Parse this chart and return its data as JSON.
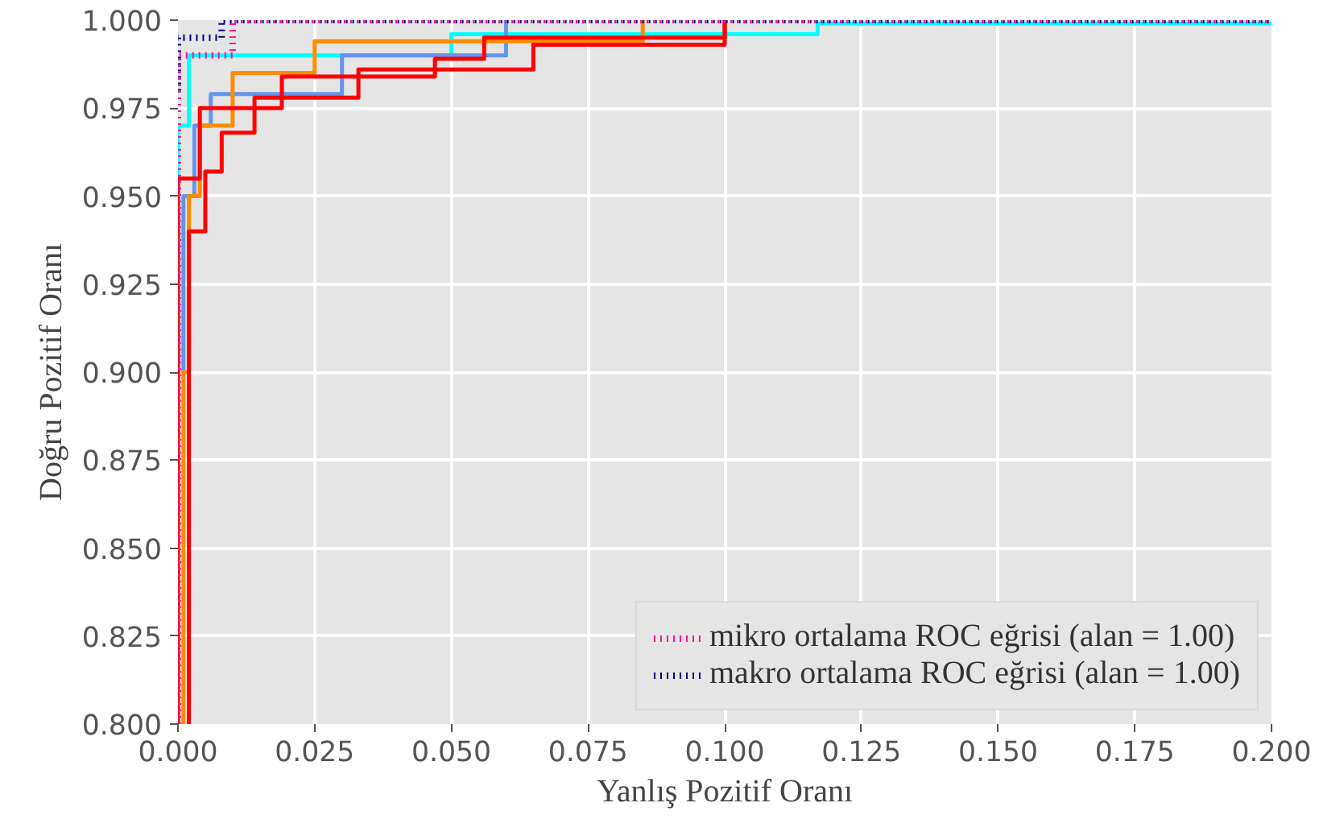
{
  "chart_data": {
    "type": "step",
    "xlabel": "Yanlış Pozitif Oranı",
    "ylabel": "Doğru Pozitif Oranı",
    "xlim": [
      0.0,
      0.2
    ],
    "ylim": [
      0.8,
      1.0
    ],
    "xticks": [
      {
        "value": 0,
        "label": "0.000"
      },
      {
        "value": 0.025,
        "label": "0.025"
      },
      {
        "value": 0.05,
        "label": "0.050"
      },
      {
        "value": 0.075,
        "label": "0.075"
      },
      {
        "value": 0.1,
        "label": "0.100"
      },
      {
        "value": 0.125,
        "label": "0.125"
      },
      {
        "value": 0.15,
        "label": "0.150"
      },
      {
        "value": 0.175,
        "label": "0.175"
      },
      {
        "value": 0.2,
        "label": "0.200"
      }
    ],
    "yticks": [
      {
        "value": 0.8,
        "label": "0.800"
      },
      {
        "value": 0.825,
        "label": "0.825"
      },
      {
        "value": 0.85,
        "label": "0.850"
      },
      {
        "value": 0.875,
        "label": "0.875"
      },
      {
        "value": 0.9,
        "label": "0.900"
      },
      {
        "value": 0.925,
        "label": "0.925"
      },
      {
        "value": 0.95,
        "label": "0.950"
      },
      {
        "value": 0.975,
        "label": "0.975"
      },
      {
        "value": 1.0,
        "label": "1.000"
      }
    ],
    "grid": true,
    "legend": "bottom right",
    "series": [
      {
        "color": "#00ffff",
        "x": [
          0.0,
          0.0,
          0.002,
          0.002,
          0.05,
          0.05,
          0.117,
          0.117,
          0.2
        ],
        "values": [
          0.8,
          0.97,
          0.97,
          0.99,
          0.99,
          0.996,
          0.996,
          0.999,
          0.999
        ]
      },
      {
        "color": "#6495ed",
        "x": [
          0.001,
          0.001,
          0.003,
          0.003,
          0.006,
          0.006,
          0.03,
          0.03,
          0.06,
          0.06
        ],
        "values": [
          0.9,
          0.95,
          0.95,
          0.97,
          0.97,
          0.979,
          0.979,
          0.99,
          0.99,
          1.0
        ]
      },
      {
        "color": "#ff8c00",
        "x": [
          0.001,
          0.001,
          0.002,
          0.002,
          0.004,
          0.004,
          0.01,
          0.01,
          0.025,
          0.025,
          0.085,
          0.085
        ],
        "values": [
          0.8,
          0.9,
          0.9,
          0.95,
          0.95,
          0.97,
          0.97,
          0.985,
          0.985,
          0.994,
          0.994,
          1.0
        ]
      },
      {
        "color": "#ff0000",
        "x": [
          0.002,
          0.002,
          0.005,
          0.005,
          0.008,
          0.008,
          0.014,
          0.014,
          0.033,
          0.033,
          0.065,
          0.065,
          0.1,
          0.1
        ],
        "values": [
          0.8,
          0.94,
          0.94,
          0.957,
          0.957,
          0.968,
          0.968,
          0.978,
          0.978,
          0.986,
          0.986,
          0.993,
          0.993,
          1.0
        ]
      },
      {
        "color": "#ff0000",
        "x": [
          0.0,
          0.0,
          0.004,
          0.004,
          0.019,
          0.019,
          0.047,
          0.047,
          0.056,
          0.056,
          0.1,
          0.1
        ],
        "values": [
          0.8,
          0.955,
          0.955,
          0.975,
          0.975,
          0.984,
          0.984,
          0.989,
          0.989,
          0.995,
          0.995,
          1.0
        ]
      },
      {
        "name": "mikro ortalama ROC eğrisi (alan = 1.00)",
        "color": "#ff1493",
        "line_style": "dotted",
        "x": [
          0.0,
          0.0,
          0.01,
          0.01,
          0.2
        ],
        "values": [
          0.8,
          0.99,
          0.99,
          1.0,
          1.0
        ]
      },
      {
        "name": "makro ortalama ROC eğrisi (alan = 1.00)",
        "color": "#000080",
        "line_style": "dotted",
        "x": [
          0.0,
          0.0,
          0.008,
          0.008,
          0.2
        ],
        "values": [
          0.98,
          0.995,
          0.995,
          1.0,
          1.0
        ]
      }
    ]
  }
}
